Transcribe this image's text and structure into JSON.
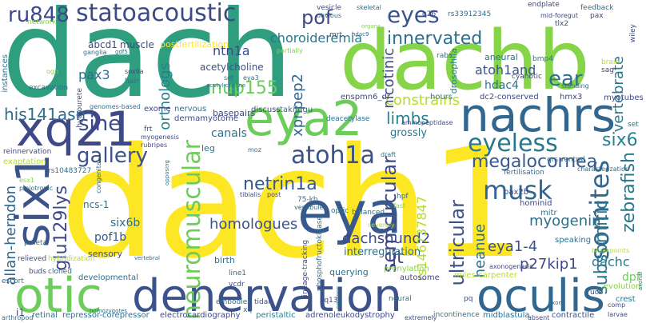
{
  "words": [
    {
      "text": "dach1",
      "color": "#fde725"
    },
    {
      "text": "dach",
      "color": "#2e9e7e"
    },
    {
      "text": "dachb",
      "color": "#86d549"
    },
    {
      "text": "denervation",
      "color": "#3b528b"
    },
    {
      "text": "oculis",
      "color": "#31668e"
    },
    {
      "text": "nachrs",
      "color": "#31668e"
    },
    {
      "text": "eya2",
      "color": "#6ccd5a"
    },
    {
      "text": "eya",
      "color": "#38598c"
    },
    {
      "text": "otic",
      "color": "#6ccd5a"
    },
    {
      "text": "xq21",
      "color": "#3e4989"
    },
    {
      "text": "six1",
      "color": "#3b528b"
    },
    {
      "text": "statoacoustic",
      "color": "#3e4989"
    },
    {
      "text": "ru848",
      "color": "#3e4989"
    },
    {
      "text": "neuromuscular",
      "color": "#6ccd5a"
    },
    {
      "text": "atoh1a",
      "color": "#3b528b"
    },
    {
      "text": "eyeless",
      "color": "#2a788e"
    },
    {
      "text": "eyes",
      "color": "#3b528b"
    },
    {
      "text": "musk",
      "color": "#31668e"
    },
    {
      "text": "somites",
      "color": "#31668e"
    },
    {
      "text": "innervated",
      "color": "#2d708e"
    },
    {
      "text": "pof",
      "color": "#3e4989"
    },
    {
      "text": "ear",
      "color": "#2d708e"
    },
    {
      "text": "six6",
      "color": "#26828e"
    },
    {
      "text": "zebrafish",
      "color": "#2a788e"
    },
    {
      "text": "sine",
      "color": "#3e4989"
    },
    {
      "text": "limbs",
      "color": "#26828e"
    },
    {
      "text": "gallery",
      "color": "#3b528b"
    },
    {
      "text": "netrin1a",
      "color": "#38598c"
    },
    {
      "text": "megalocornea",
      "color": "#38598c"
    },
    {
      "text": "semicircular",
      "color": "#3e4989"
    },
    {
      "text": "ultricular",
      "color": "#3b528b"
    },
    {
      "text": "subsomitic",
      "color": "#2a788e"
    },
    {
      "text": "vertebrate",
      "color": "#2a788e"
    },
    {
      "text": "nup155",
      "color": "#6ccd5a"
    },
    {
      "text": "constrains",
      "color": "#b5de2b"
    },
    {
      "text": "his141asn",
      "color": "#2d708e"
    },
    {
      "text": "glu129lys",
      "color": "#3e4989"
    },
    {
      "text": "homologues",
      "color": "#3b528b"
    },
    {
      "text": "dachshund2",
      "color": "#3e4989"
    },
    {
      "text": "myogenin",
      "color": "#2d708e"
    },
    {
      "text": "eya1-4",
      "color": "#3b528b"
    },
    {
      "text": "p27kip1",
      "color": "#3e4989"
    },
    {
      "text": "dachc",
      "color": "#2a788e"
    },
    {
      "text": "heanue",
      "color": "#2d708e"
    },
    {
      "text": "jt",
      "color": "#3e4989"
    },
    {
      "text": "allan-herndon",
      "color": "#31668e"
    },
    {
      "text": "choroideremia",
      "color": "#2a788e"
    },
    {
      "text": "pax3",
      "color": "#2d708e"
    },
    {
      "text": "ntn1a",
      "color": "#3e4989"
    },
    {
      "text": "orthologs",
      "color": "#26828e"
    },
    {
      "text": "xpnpep2",
      "color": "#31668e"
    },
    {
      "text": "nicotinic",
      "color": "#3e4989"
    },
    {
      "text": "atoh1and",
      "color": "#3b528b"
    },
    {
      "text": "hdac4",
      "color": "#2d708e"
    },
    {
      "text": "rs146737847",
      "color": "#b5de2b"
    },
    {
      "text": "interregulation",
      "color": "#2d708e"
    },
    {
      "text": "pof1b",
      "color": "#38598c"
    },
    {
      "text": "six6b",
      "color": "#2d708e"
    },
    {
      "text": "canals",
      "color": "#2d708e"
    },
    {
      "text": "grossly",
      "color": "#2a788e"
    },
    {
      "text": "abcd1",
      "color": "#3e4989"
    },
    {
      "text": "muscle",
      "color": "#3e4989"
    },
    {
      "text": "postfertilization",
      "color": "#fde725"
    },
    {
      "text": "acetylcholine",
      "color": "#3b528b"
    },
    {
      "text": "drosophila",
      "color": "#26828e"
    },
    {
      "text": "aneural",
      "color": "#2d708e"
    },
    {
      "text": "dpf",
      "color": "#6ccd5a"
    },
    {
      "text": "crest",
      "color": "#2a788e"
    },
    {
      "text": "evolution",
      "color": "#86d549"
    },
    {
      "text": "electrocardiography",
      "color": "#3e4989"
    },
    {
      "text": "peristaltic",
      "color": "#26828e"
    },
    {
      "text": "adrenoleukodystrophy",
      "color": "#3e4989"
    },
    {
      "text": "midblastula",
      "color": "#2d708e"
    },
    {
      "text": "contractile",
      "color": "#3b528b"
    },
    {
      "text": "repressor-corepressor",
      "color": "#2d708e"
    },
    {
      "text": "miles-carpenter",
      "color": "#b5de2b"
    },
    {
      "text": "autosome",
      "color": "#3e4989"
    },
    {
      "text": "developmental",
      "color": "#2d708e"
    },
    {
      "text": "retinal",
      "color": "#2d708e"
    },
    {
      "text": "i1",
      "color": "#3e4989"
    },
    {
      "text": "ncs-1",
      "color": "#2d708e"
    },
    {
      "text": "sensory",
      "color": "#3e4989"
    },
    {
      "text": "birth",
      "color": "#2d708e"
    },
    {
      "text": "querying",
      "color": "#2d708e"
    },
    {
      "text": "prenylation",
      "color": "#86d549"
    },
    {
      "text": "basepairs",
      "color": "#3e4989"
    },
    {
      "text": "leg",
      "color": "#2d708e"
    },
    {
      "text": "dermamyotome",
      "color": "#3e4989"
    },
    {
      "text": "nervous",
      "color": "#2d708e"
    },
    {
      "text": "exome",
      "color": "#3e4989"
    },
    {
      "text": "myotubes",
      "color": "#3e4989"
    },
    {
      "text": "dc2-conserved",
      "color": "#3e4989"
    },
    {
      "text": "enspmn6_dr",
      "color": "#3e4989"
    },
    {
      "text": "discuss",
      "color": "#3e4989"
    },
    {
      "text": "takifugu",
      "color": "#2d708e"
    },
    {
      "text": "hmx3",
      "color": "#3e4989"
    },
    {
      "text": "hours",
      "color": "#2a788e"
    },
    {
      "text": "fertilisation",
      "color": "#2d708e"
    },
    {
      "text": "pax2b",
      "color": "#3e4989"
    },
    {
      "text": "mitr",
      "color": "#2d708e"
    },
    {
      "text": "speaking",
      "color": "#2d708e"
    },
    {
      "text": "hominid",
      "color": "#3e4989"
    },
    {
      "text": "mrt",
      "color": "#3e4989"
    },
    {
      "text": "rabs",
      "color": "#2d708e"
    },
    {
      "text": "q26",
      "color": "#3e4989"
    },
    {
      "text": "rs33912345",
      "color": "#2d708e"
    },
    {
      "text": "vesicle",
      "color": "#3e4989"
    },
    {
      "text": "obvious",
      "color": "#2d708e"
    },
    {
      "text": "skeletal",
      "color": "#2d708e"
    },
    {
      "text": "endplate",
      "color": "#3e4989"
    },
    {
      "text": "feedback",
      "color": "#2d708e"
    },
    {
      "text": "pax",
      "color": "#3e4989"
    },
    {
      "text": "mid-foregut",
      "color": "#3e4989"
    },
    {
      "text": "tlx2",
      "color": "#3e4989"
    },
    {
      "text": "wiley",
      "color": "#3e4989"
    },
    {
      "text": "brain",
      "color": "#b5de2b"
    },
    {
      "text": "sag",
      "color": "#3e4989"
    },
    {
      "text": "bmp4",
      "color": "#2d708e"
    },
    {
      "text": "cyanotic",
      "color": "#3e4989"
    },
    {
      "text": "standing",
      "color": "#2d708e"
    },
    {
      "text": "network",
      "color": "#86d549"
    },
    {
      "text": "ganglia",
      "color": "#2d708e"
    },
    {
      "text": "instances",
      "color": "#2d708e"
    },
    {
      "text": "excavation",
      "color": "#2d708e"
    },
    {
      "text": "ogn",
      "color": "#86d549"
    },
    {
      "text": "reinnervation",
      "color": "#3e4989"
    },
    {
      "text": "exaptation",
      "color": "#b5de2b"
    },
    {
      "text": "rs10483727",
      "color": "#2d708e"
    },
    {
      "text": "relieved",
      "color": "#3e4989"
    },
    {
      "text": "escort",
      "color": "#2d708e"
    },
    {
      "text": "buds",
      "color": "#3e4989"
    },
    {
      "text": "cloned",
      "color": "#2d708e"
    },
    {
      "text": "arthropod",
      "color": "#2d708e"
    },
    {
      "text": "hydrourete",
      "color": "#3e4989"
    },
    {
      "text": "genomes-based",
      "color": "#2d708e"
    },
    {
      "text": "frt",
      "color": "#3e4989"
    },
    {
      "text": "myogenesis",
      "color": "#3e4989"
    },
    {
      "text": "rubripes",
      "color": "#3e4989"
    },
    {
      "text": "vcdr",
      "color": "#3e4989"
    },
    {
      "text": "line1",
      "color": "#2d708e"
    },
    {
      "text": "embodies",
      "color": "#2d708e"
    },
    {
      "text": "tidal",
      "color": "#3e4989"
    },
    {
      "text": "xq13",
      "color": "#3e4989"
    },
    {
      "text": "xq",
      "color": "#2d708e"
    },
    {
      "text": "neural",
      "color": "#2d708e"
    },
    {
      "text": "incontinence",
      "color": "#2d708e"
    },
    {
      "text": "ucb",
      "color": "#3e4989"
    },
    {
      "text": "pq",
      "color": "#3e4989"
    },
    {
      "text": "absent",
      "color": "#3e4989"
    },
    {
      "text": "extremely",
      "color": "#3e4989"
    },
    {
      "text": "lineage-tracking",
      "color": "#3e4989"
    },
    {
      "text": "phosphofructokinase",
      "color": "#2d708e"
    },
    {
      "text": "75-kb",
      "color": "#2d708e"
    },
    {
      "text": "vestibule",
      "color": "#2d708e"
    },
    {
      "text": "optic",
      "color": "#2d708e"
    },
    {
      "text": "balanced",
      "color": "#2d708e"
    },
    {
      "text": "severely",
      "color": "#b5de2b"
    },
    {
      "text": "hpf",
      "color": "#2d708e"
    },
    {
      "text": "fast",
      "color": "#86d549"
    },
    {
      "text": "qrs",
      "color": "#2d708e"
    },
    {
      "text": "ventral",
      "color": "#2d708e"
    },
    {
      "text": "characterization",
      "color": "#2d708e"
    },
    {
      "text": "set",
      "color": "#2d708e"
    },
    {
      "text": "deacetylase",
      "color": "#2d708e"
    },
    {
      "text": "aminopeptidase",
      "color": "#3e4989"
    },
    {
      "text": "sox9a",
      "color": "#3e4989"
    },
    {
      "text": "hair",
      "color": "#2d708e"
    },
    {
      "text": "sdf",
      "color": "#2d708e"
    },
    {
      "text": "eya3",
      "color": "#2d708e"
    },
    {
      "text": "acetyl-choline",
      "color": "#2d708e"
    },
    {
      "text": "gdf5",
      "color": "#2d708e"
    },
    {
      "text": "partially",
      "color": "#86d549"
    },
    {
      "text": "esx1",
      "color": "#86d549"
    },
    {
      "text": "pleiotropic",
      "color": "#2d708e"
    },
    {
      "text": "pmeta",
      "color": "#2d708e"
    },
    {
      "text": "post",
      "color": "#3e4989"
    },
    {
      "text": "tibialis",
      "color": "#3e4989"
    },
    {
      "text": "moz",
      "color": "#2d708e"
    },
    {
      "text": "axonogenesis",
      "color": "#3e4989"
    },
    {
      "text": "comp",
      "color": "#3e4989"
    },
    {
      "text": "larvae",
      "color": "#3e4989"
    },
    {
      "text": "breakpoints",
      "color": "#b5de2b"
    },
    {
      "text": "draft",
      "color": "#2d708e"
    },
    {
      "text": "organs",
      "color": "#86d549"
    },
    {
      "text": "hdac9",
      "color": "#2d708e"
    },
    {
      "text": "opposing",
      "color": "#2d708e"
    },
    {
      "text": "congenital",
      "color": "#2d708e"
    },
    {
      "text": "homozygotes",
      "color": "#2d708e"
    },
    {
      "text": "hybridization",
      "color": "#b5de2b"
    },
    {
      "text": "vertebral",
      "color": "#2d708e"
    },
    {
      "text": "exon3",
      "color": "#2d708e"
    },
    {
      "text": "axonal",
      "color": "#2d708e"
    },
    {
      "text": "neurons",
      "color": "#2d708e"
    }
  ]
}
